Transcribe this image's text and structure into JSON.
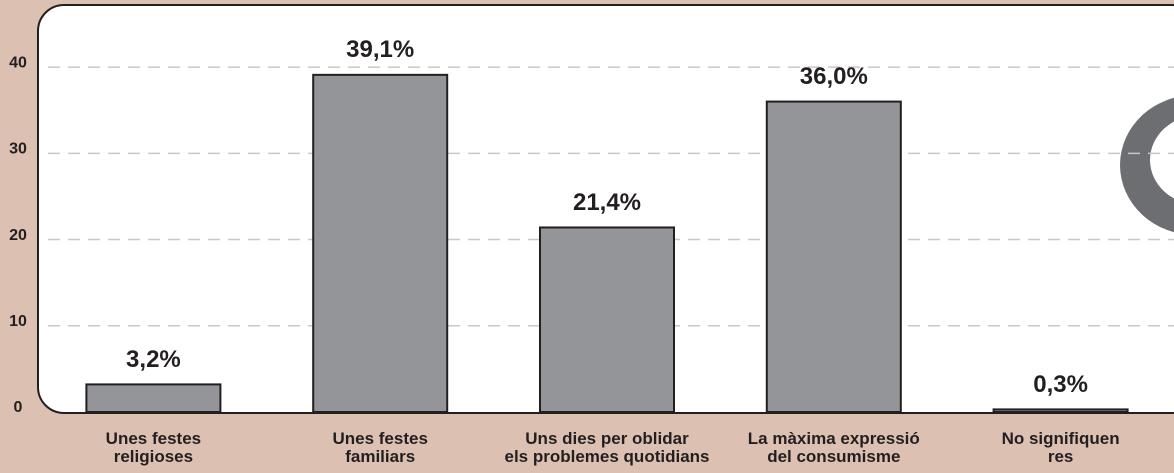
{
  "chart_data": {
    "type": "bar",
    "categories": [
      "Unes festes\nreligioses",
      "Unes festes\nfamiliars",
      "Uns dies per oblidar\nels problemes quotidians",
      "La màxima expressió\ndel consumisme",
      "No signifiquen\nres"
    ],
    "values": [
      3.2,
      39.1,
      21.4,
      36.0,
      0.3
    ],
    "value_labels": [
      "3,2%",
      "39,1%",
      "21,4%",
      "36,0%",
      "0,3%"
    ],
    "color": "#939598",
    "ylim": [
      0,
      47.2
    ],
    "yticks": [
      0,
      10,
      20,
      30,
      40
    ],
    "grid": true
  }
}
